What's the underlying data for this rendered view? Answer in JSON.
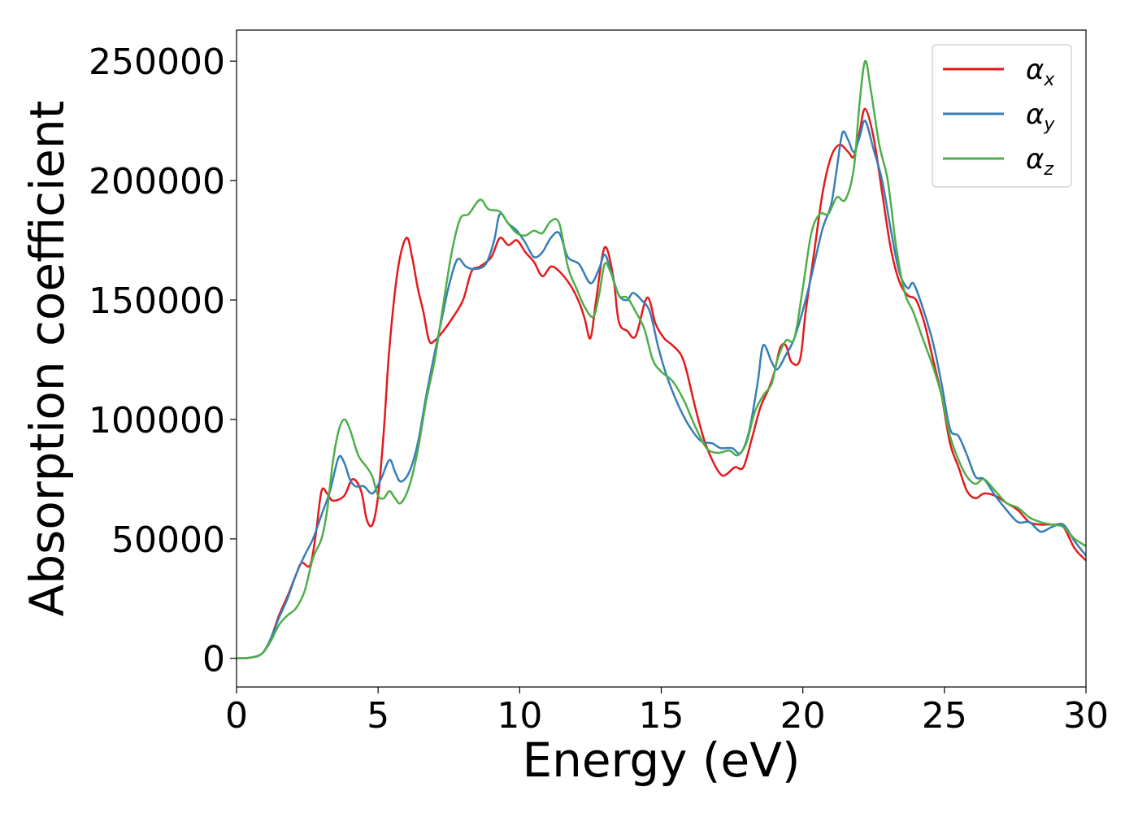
{
  "chart_data": {
    "type": "line",
    "xlabel": "Energy (eV)",
    "ylabel": "Absorption coefficient",
    "xlim": [
      0,
      30
    ],
    "ylim": [
      -12000,
      263000
    ],
    "xticks": [
      0,
      5,
      10,
      15,
      20,
      25,
      30
    ],
    "xtick_labels": [
      "0",
      "5",
      "10",
      "15",
      "20",
      "25",
      "30"
    ],
    "yticks": [
      0,
      50000,
      100000,
      150000,
      200000,
      250000
    ],
    "ytick_labels": [
      "0",
      "50000",
      "100000",
      "150000",
      "200000",
      "250000"
    ],
    "grid": false,
    "legend_position": "top-right",
    "series": [
      {
        "name": "αx",
        "name_base": "α",
        "name_sub": "x",
        "color": "#e41a1c",
        "points": [
          [
            0,
            0
          ],
          [
            0.5,
            300
          ],
          [
            0.9,
            2000
          ],
          [
            1.2,
            8000
          ],
          [
            1.5,
            18000
          ],
          [
            1.8,
            26000
          ],
          [
            2.1,
            35000
          ],
          [
            2.3,
            40000
          ],
          [
            2.6,
            39000
          ],
          [
            2.8,
            52000
          ],
          [
            3.0,
            70000
          ],
          [
            3.2,
            69000
          ],
          [
            3.4,
            66000
          ],
          [
            3.8,
            68000
          ],
          [
            4.1,
            75000
          ],
          [
            4.4,
            70000
          ],
          [
            4.6,
            58000
          ],
          [
            4.8,
            56000
          ],
          [
            5.0,
            68000
          ],
          [
            5.2,
            95000
          ],
          [
            5.4,
            130000
          ],
          [
            5.7,
            163000
          ],
          [
            6.0,
            176000
          ],
          [
            6.2,
            168000
          ],
          [
            6.4,
            155000
          ],
          [
            6.6,
            145000
          ],
          [
            6.8,
            133000
          ],
          [
            7.0,
            133000
          ],
          [
            7.3,
            137000
          ],
          [
            7.6,
            142000
          ],
          [
            8.0,
            150000
          ],
          [
            8.3,
            162000
          ],
          [
            8.6,
            164000
          ],
          [
            9.0,
            168000
          ],
          [
            9.3,
            176000
          ],
          [
            9.6,
            173000
          ],
          [
            9.9,
            175000
          ],
          [
            10.2,
            170000
          ],
          [
            10.5,
            166000
          ],
          [
            10.8,
            160000
          ],
          [
            11.1,
            164000
          ],
          [
            11.4,
            162000
          ],
          [
            11.8,
            156000
          ],
          [
            12.1,
            149000
          ],
          [
            12.3,
            142000
          ],
          [
            12.5,
            134000
          ],
          [
            12.7,
            150000
          ],
          [
            13.0,
            172000
          ],
          [
            13.3,
            160000
          ],
          [
            13.5,
            141000
          ],
          [
            13.8,
            137000
          ],
          [
            14.1,
            135000
          ],
          [
            14.5,
            151000
          ],
          [
            14.8,
            140000
          ],
          [
            15.1,
            134000
          ],
          [
            15.4,
            131000
          ],
          [
            15.7,
            127000
          ],
          [
            15.9,
            120000
          ],
          [
            16.2,
            105000
          ],
          [
            16.5,
            92000
          ],
          [
            16.8,
            83000
          ],
          [
            17.1,
            77000
          ],
          [
            17.3,
            77000
          ],
          [
            17.6,
            80000
          ],
          [
            17.9,
            80000
          ],
          [
            18.2,
            92000
          ],
          [
            18.5,
            105000
          ],
          [
            18.8,
            113000
          ],
          [
            19.0,
            120000
          ],
          [
            19.2,
            130000
          ],
          [
            19.4,
            131000
          ],
          [
            19.6,
            124000
          ],
          [
            19.9,
            125000
          ],
          [
            20.1,
            145000
          ],
          [
            20.4,
            170000
          ],
          [
            20.7,
            195000
          ],
          [
            21.0,
            210000
          ],
          [
            21.3,
            215000
          ],
          [
            21.6,
            212000
          ],
          [
            21.8,
            210000
          ],
          [
            22.0,
            220000
          ],
          [
            22.2,
            230000
          ],
          [
            22.5,
            218000
          ],
          [
            22.8,
            195000
          ],
          [
            23.1,
            172000
          ],
          [
            23.4,
            158000
          ],
          [
            23.7,
            152000
          ],
          [
            24.0,
            150000
          ],
          [
            24.3,
            140000
          ],
          [
            24.6,
            125000
          ],
          [
            24.9,
            110000
          ],
          [
            25.2,
            90000
          ],
          [
            25.5,
            80000
          ],
          [
            25.8,
            70000
          ],
          [
            26.1,
            67000
          ],
          [
            26.4,
            69000
          ],
          [
            26.8,
            68000
          ],
          [
            27.2,
            65000
          ],
          [
            27.6,
            62000
          ],
          [
            28.0,
            57000
          ],
          [
            28.4,
            56000
          ],
          [
            28.8,
            56000
          ],
          [
            29.2,
            55000
          ],
          [
            29.6,
            46000
          ],
          [
            30.0,
            41000
          ]
        ]
      },
      {
        "name": "αy",
        "name_base": "α",
        "name_sub": "y",
        "color": "#377eb8",
        "points": [
          [
            0,
            0
          ],
          [
            0.5,
            300
          ],
          [
            0.9,
            2000
          ],
          [
            1.2,
            8000
          ],
          [
            1.5,
            17000
          ],
          [
            1.8,
            25000
          ],
          [
            2.1,
            35000
          ],
          [
            2.4,
            43000
          ],
          [
            2.7,
            50000
          ],
          [
            3.0,
            60000
          ],
          [
            3.3,
            70000
          ],
          [
            3.6,
            84000
          ],
          [
            3.8,
            82000
          ],
          [
            4.0,
            75000
          ],
          [
            4.2,
            72000
          ],
          [
            4.5,
            72000
          ],
          [
            4.8,
            69000
          ],
          [
            5.1,
            75000
          ],
          [
            5.4,
            83000
          ],
          [
            5.6,
            78000
          ],
          [
            5.8,
            74000
          ],
          [
            6.1,
            78000
          ],
          [
            6.4,
            90000
          ],
          [
            6.7,
            110000
          ],
          [
            7.0,
            128000
          ],
          [
            7.3,
            145000
          ],
          [
            7.5,
            156000
          ],
          [
            7.8,
            167000
          ],
          [
            8.1,
            164000
          ],
          [
            8.4,
            163000
          ],
          [
            8.8,
            165000
          ],
          [
            9.1,
            175000
          ],
          [
            9.3,
            186000
          ],
          [
            9.6,
            182000
          ],
          [
            9.9,
            179000
          ],
          [
            10.2,
            174000
          ],
          [
            10.5,
            168000
          ],
          [
            10.8,
            170000
          ],
          [
            11.1,
            176000
          ],
          [
            11.4,
            178000
          ],
          [
            11.7,
            168000
          ],
          [
            12.1,
            165000
          ],
          [
            12.5,
            157000
          ],
          [
            12.8,
            163000
          ],
          [
            13.0,
            169000
          ],
          [
            13.2,
            163000
          ],
          [
            13.5,
            152000
          ],
          [
            13.8,
            150000
          ],
          [
            14.0,
            153000
          ],
          [
            14.3,
            150000
          ],
          [
            14.6,
            145000
          ],
          [
            14.9,
            130000
          ],
          [
            15.2,
            118000
          ],
          [
            15.6,
            106000
          ],
          [
            16.0,
            97000
          ],
          [
            16.4,
            91000
          ],
          [
            16.8,
            90000
          ],
          [
            17.1,
            88000
          ],
          [
            17.5,
            88000
          ],
          [
            17.8,
            86000
          ],
          [
            18.1,
            95000
          ],
          [
            18.4,
            115000
          ],
          [
            18.6,
            131000
          ],
          [
            18.9,
            124000
          ],
          [
            19.1,
            121000
          ],
          [
            19.4,
            127000
          ],
          [
            19.7,
            134000
          ],
          [
            20.1,
            150000
          ],
          [
            20.4,
            165000
          ],
          [
            20.7,
            180000
          ],
          [
            21.0,
            190000
          ],
          [
            21.2,
            205000
          ],
          [
            21.4,
            220000
          ],
          [
            21.6,
            217000
          ],
          [
            21.8,
            212000
          ],
          [
            22.0,
            218000
          ],
          [
            22.2,
            225000
          ],
          [
            22.5,
            213000
          ],
          [
            22.8,
            200000
          ],
          [
            23.1,
            180000
          ],
          [
            23.4,
            162000
          ],
          [
            23.7,
            155000
          ],
          [
            23.9,
            157000
          ],
          [
            24.2,
            148000
          ],
          [
            24.6,
            132000
          ],
          [
            24.9,
            115000
          ],
          [
            25.2,
            96000
          ],
          [
            25.5,
            93000
          ],
          [
            25.8,
            85000
          ],
          [
            26.1,
            76000
          ],
          [
            26.4,
            75000
          ],
          [
            26.8,
            68000
          ],
          [
            27.2,
            62000
          ],
          [
            27.6,
            57000
          ],
          [
            28.0,
            57000
          ],
          [
            28.4,
            53000
          ],
          [
            28.8,
            55000
          ],
          [
            29.2,
            56000
          ],
          [
            29.6,
            49000
          ],
          [
            30.0,
            43000
          ]
        ]
      },
      {
        "name": "αz",
        "name_base": "α",
        "name_sub": "z",
        "color": "#4daf4a",
        "points": [
          [
            0,
            0
          ],
          [
            0.5,
            300
          ],
          [
            0.9,
            2000
          ],
          [
            1.2,
            7000
          ],
          [
            1.5,
            14000
          ],
          [
            1.8,
            18000
          ],
          [
            2.1,
            21000
          ],
          [
            2.4,
            28000
          ],
          [
            2.7,
            42000
          ],
          [
            3.0,
            50000
          ],
          [
            3.2,
            62000
          ],
          [
            3.4,
            82000
          ],
          [
            3.6,
            95000
          ],
          [
            3.8,
            100000
          ],
          [
            4.0,
            96000
          ],
          [
            4.3,
            85000
          ],
          [
            4.6,
            80000
          ],
          [
            4.8,
            76000
          ],
          [
            5.0,
            68000
          ],
          [
            5.2,
            67000
          ],
          [
            5.4,
            70000
          ],
          [
            5.6,
            67000
          ],
          [
            5.8,
            65000
          ],
          [
            6.1,
            72000
          ],
          [
            6.4,
            87000
          ],
          [
            6.7,
            108000
          ],
          [
            7.0,
            125000
          ],
          [
            7.3,
            148000
          ],
          [
            7.6,
            170000
          ],
          [
            7.9,
            184000
          ],
          [
            8.2,
            186000
          ],
          [
            8.6,
            192000
          ],
          [
            8.9,
            188000
          ],
          [
            9.3,
            187000
          ],
          [
            9.6,
            182000
          ],
          [
            9.9,
            178000
          ],
          [
            10.2,
            177000
          ],
          [
            10.5,
            179000
          ],
          [
            10.8,
            178000
          ],
          [
            11.1,
            183000
          ],
          [
            11.4,
            182000
          ],
          [
            11.7,
            164000
          ],
          [
            12.0,
            155000
          ],
          [
            12.3,
            147000
          ],
          [
            12.6,
            143000
          ],
          [
            12.8,
            152000
          ],
          [
            13.0,
            165000
          ],
          [
            13.2,
            162000
          ],
          [
            13.5,
            152000
          ],
          [
            13.8,
            151000
          ],
          [
            14.1,
            145000
          ],
          [
            14.4,
            138000
          ],
          [
            14.7,
            125000
          ],
          [
            15.0,
            120000
          ],
          [
            15.4,
            116000
          ],
          [
            15.8,
            108000
          ],
          [
            16.2,
            97000
          ],
          [
            16.6,
            88000
          ],
          [
            17.0,
            86000
          ],
          [
            17.4,
            87000
          ],
          [
            17.7,
            85000
          ],
          [
            18.0,
            90000
          ],
          [
            18.3,
            103000
          ],
          [
            18.6,
            110000
          ],
          [
            18.9,
            115000
          ],
          [
            19.1,
            125000
          ],
          [
            19.4,
            133000
          ],
          [
            19.7,
            134000
          ],
          [
            20.0,
            155000
          ],
          [
            20.3,
            178000
          ],
          [
            20.6,
            186000
          ],
          [
            20.9,
            186000
          ],
          [
            21.2,
            193000
          ],
          [
            21.5,
            192000
          ],
          [
            21.8,
            205000
          ],
          [
            22.0,
            232000
          ],
          [
            22.2,
            250000
          ],
          [
            22.4,
            238000
          ],
          [
            22.7,
            215000
          ],
          [
            23.0,
            200000
          ],
          [
            23.3,
            172000
          ],
          [
            23.6,
            153000
          ],
          [
            23.9,
            145000
          ],
          [
            24.2,
            135000
          ],
          [
            24.6,
            122000
          ],
          [
            24.9,
            110000
          ],
          [
            25.2,
            93000
          ],
          [
            25.5,
            83000
          ],
          [
            25.8,
            76000
          ],
          [
            26.1,
            73000
          ],
          [
            26.4,
            75000
          ],
          [
            26.8,
            70000
          ],
          [
            27.2,
            65000
          ],
          [
            27.6,
            63000
          ],
          [
            28.0,
            59000
          ],
          [
            28.4,
            57000
          ],
          [
            28.8,
            56000
          ],
          [
            29.2,
            55000
          ],
          [
            29.6,
            50000
          ],
          [
            30.0,
            47000
          ]
        ]
      }
    ]
  }
}
